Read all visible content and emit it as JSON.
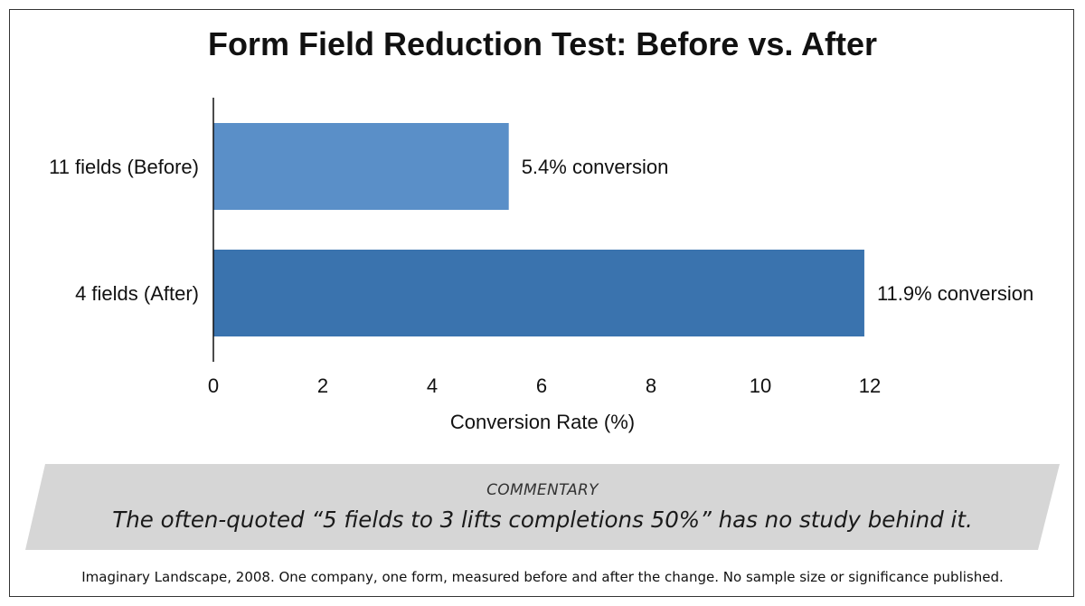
{
  "chart_data": {
    "type": "bar",
    "orientation": "horizontal",
    "title": "Form Field Reduction Test: Before vs. After",
    "categories": [
      "11 fields (Before)",
      "4 fields (After)"
    ],
    "values": [
      5.4,
      11.9
    ],
    "data_labels": [
      "5.4% conversion",
      "11.9% conversion"
    ],
    "bar_colors": [
      "#5a8fc8",
      "#3a73ae"
    ],
    "xlabel": "Conversion Rate (%)",
    "ylabel": "",
    "xlim": [
      0,
      12
    ],
    "xticks": [
      "0",
      "2",
      "4",
      "6",
      "8",
      "10",
      "12"
    ],
    "grid": false,
    "legend": "none"
  },
  "commentary": {
    "heading": "COMMENTARY",
    "text": "The often-quoted “5 fields to 3 lifts completions 50%” has no study behind it."
  },
  "source_note": "Imaginary Landscape, 2008. One company, one form, measured before and after the change. No sample size or significance published.",
  "colors": {
    "band": "#d6d6d6",
    "axis": "#111111",
    "text": "#111111"
  }
}
